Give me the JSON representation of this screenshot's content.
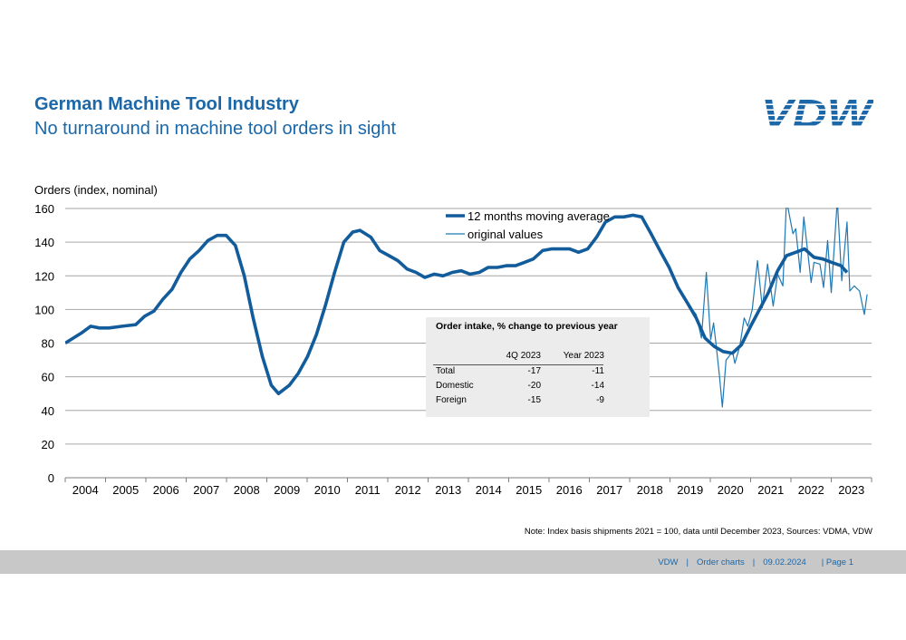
{
  "header": {
    "title": "German Machine Tool Industry",
    "subtitle": "No turnaround in machine tool orders in sight",
    "logo_text": "VDW"
  },
  "colors": {
    "accent": "#1b67a8",
    "ma_line": "#125c9c",
    "orig_line": "#1f78b4",
    "grid": "#a6a6a6",
    "footer_bg": "#c8c8c8"
  },
  "chart_data": {
    "type": "line",
    "ylabel": "Orders (index, nominal)",
    "ylim": [
      0,
      160
    ],
    "yticks": [
      0,
      20,
      40,
      60,
      80,
      100,
      120,
      140,
      160
    ],
    "xlim": [
      2004,
      2024
    ],
    "xticks": [
      "2004",
      "2005",
      "2006",
      "2007",
      "2008",
      "2009",
      "2010",
      "2011",
      "2012",
      "2013",
      "2014",
      "2015",
      "2016",
      "2017",
      "2018",
      "2019",
      "2020",
      "2021",
      "2022",
      "2023"
    ],
    "grid": true,
    "legend_position": "top-center",
    "series": [
      {
        "name": "12 months moving average",
        "style": "thick",
        "x": [
          2004.0,
          2004.4,
          2004.63,
          2004.85,
          2005.08,
          2005.41,
          2005.75,
          2005.97,
          2006.2,
          2006.42,
          2006.65,
          2006.87,
          2007.09,
          2007.32,
          2007.54,
          2007.77,
          2007.99,
          2008.22,
          2008.44,
          2008.66,
          2008.89,
          2009.11,
          2009.29,
          2009.56,
          2009.78,
          2010.01,
          2010.23,
          2010.46,
          2010.68,
          2010.91,
          2011.13,
          2011.31,
          2011.58,
          2011.8,
          2012.03,
          2012.25,
          2012.48,
          2012.7,
          2012.92,
          2013.15,
          2013.37,
          2013.6,
          2013.82,
          2014.04,
          2014.27,
          2014.49,
          2014.72,
          2014.94,
          2015.17,
          2015.39,
          2015.61,
          2015.84,
          2016.06,
          2016.29,
          2016.51,
          2016.73,
          2016.96,
          2017.18,
          2017.4,
          2017.63,
          2017.85,
          2018.08,
          2018.3,
          2018.53,
          2018.75,
          2018.98,
          2019.2,
          2019.43,
          2019.65,
          2019.87,
          2020.1,
          2020.32,
          2020.55,
          2020.77,
          2021.0,
          2021.22,
          2021.44,
          2021.67,
          2021.89,
          2022.12,
          2022.34,
          2022.57,
          2022.79,
          2023.01,
          2023.24,
          2023.39
        ],
        "y": [
          80,
          86,
          90,
          89,
          89,
          90,
          91,
          96,
          99,
          106,
          112,
          122,
          130,
          135,
          141,
          144,
          144,
          138,
          120,
          95,
          72,
          55,
          50,
          55,
          62,
          72,
          85,
          103,
          122,
          140,
          146,
          147,
          143,
          135,
          132,
          129,
          124,
          122,
          119,
          121,
          120,
          122,
          123,
          121,
          122,
          125,
          125,
          126,
          126,
          128,
          130,
          135,
          136,
          136,
          136,
          134,
          136,
          143,
          152,
          155,
          155,
          156,
          155,
          145,
          135,
          125,
          113,
          104,
          95,
          83,
          78,
          75,
          74,
          79,
          90,
          100,
          110,
          123,
          132,
          134,
          136,
          131,
          130,
          128,
          126,
          122
        ]
      },
      {
        "name": "original values",
        "style": "thin",
        "x": [
          2019.43,
          2019.55,
          2019.65,
          2019.78,
          2019.9,
          2020.01,
          2020.08,
          2020.14,
          2020.23,
          2020.3,
          2020.39,
          2020.46,
          2020.55,
          2020.61,
          2020.73,
          2020.84,
          2020.93,
          2021.04,
          2021.17,
          2021.29,
          2021.42,
          2021.56,
          2021.67,
          2021.8,
          2021.89,
          2022.05,
          2022.12,
          2022.23,
          2022.32,
          2022.5,
          2022.57,
          2022.72,
          2022.81,
          2022.91,
          2023.0,
          2023.15,
          2023.26,
          2023.39,
          2023.46,
          2023.57,
          2023.7,
          2023.82,
          2023.89
        ],
        "y": [
          104,
          100,
          97,
          83,
          122,
          82,
          92,
          80,
          60,
          42,
          70,
          72,
          75,
          68,
          78,
          95,
          90,
          100,
          129,
          101,
          127,
          102,
          121,
          114,
          165,
          145,
          148,
          122,
          155,
          116,
          128,
          127,
          113,
          141,
          110,
          165,
          117,
          152,
          111,
          114,
          111,
          97,
          109
        ]
      }
    ]
  },
  "table": {
    "title": "Order intake, % change to previous year",
    "columns": [
      "",
      "4Q 2023",
      "Year 2023"
    ],
    "rows": [
      [
        "Total",
        "-17",
        "-11"
      ],
      [
        "Domestic",
        "-20",
        "-14"
      ],
      [
        "Foreign",
        "-15",
        "-9"
      ]
    ]
  },
  "note": "Note: Index basis shipments 2021 = 100, data until December 2023, Sources: VDMA,  VDW",
  "footer": {
    "org": "VDW",
    "sep1": "|",
    "section": "Order charts",
    "sep2": "|",
    "date": "09.02.2024",
    "page": "| Page 1"
  }
}
